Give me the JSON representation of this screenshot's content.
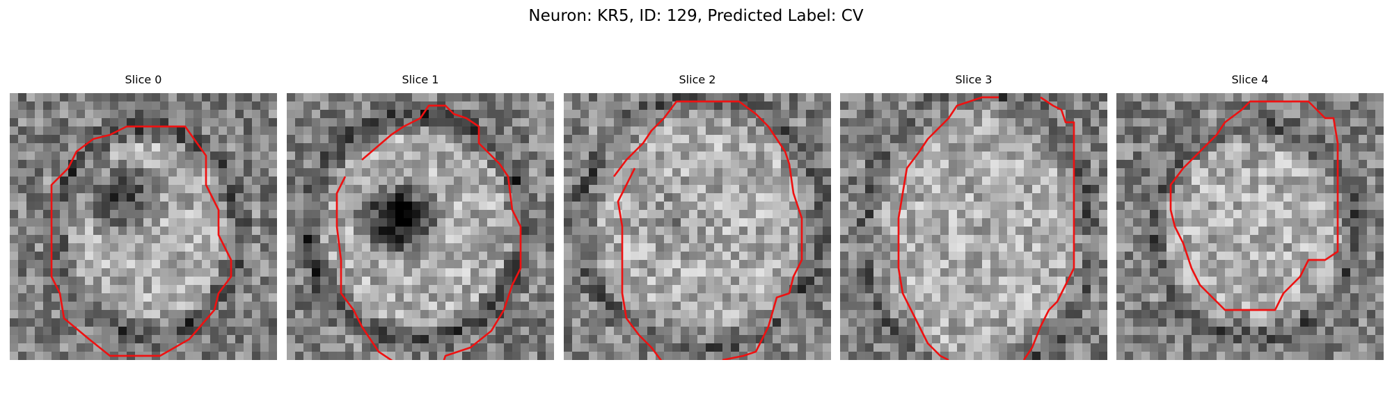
{
  "figure": {
    "title": "Neuron: KR5, ID: 129, Predicted Label: CV"
  },
  "panels": [
    {
      "title": "Slice 0"
    },
    {
      "title": "Slice 1"
    },
    {
      "title": "Slice 2"
    },
    {
      "title": "Slice 3"
    },
    {
      "title": "Slice 4"
    }
  ],
  "colors": {
    "outline": "#ee1111",
    "background": "#ffffff"
  },
  "colormap": "gray"
}
